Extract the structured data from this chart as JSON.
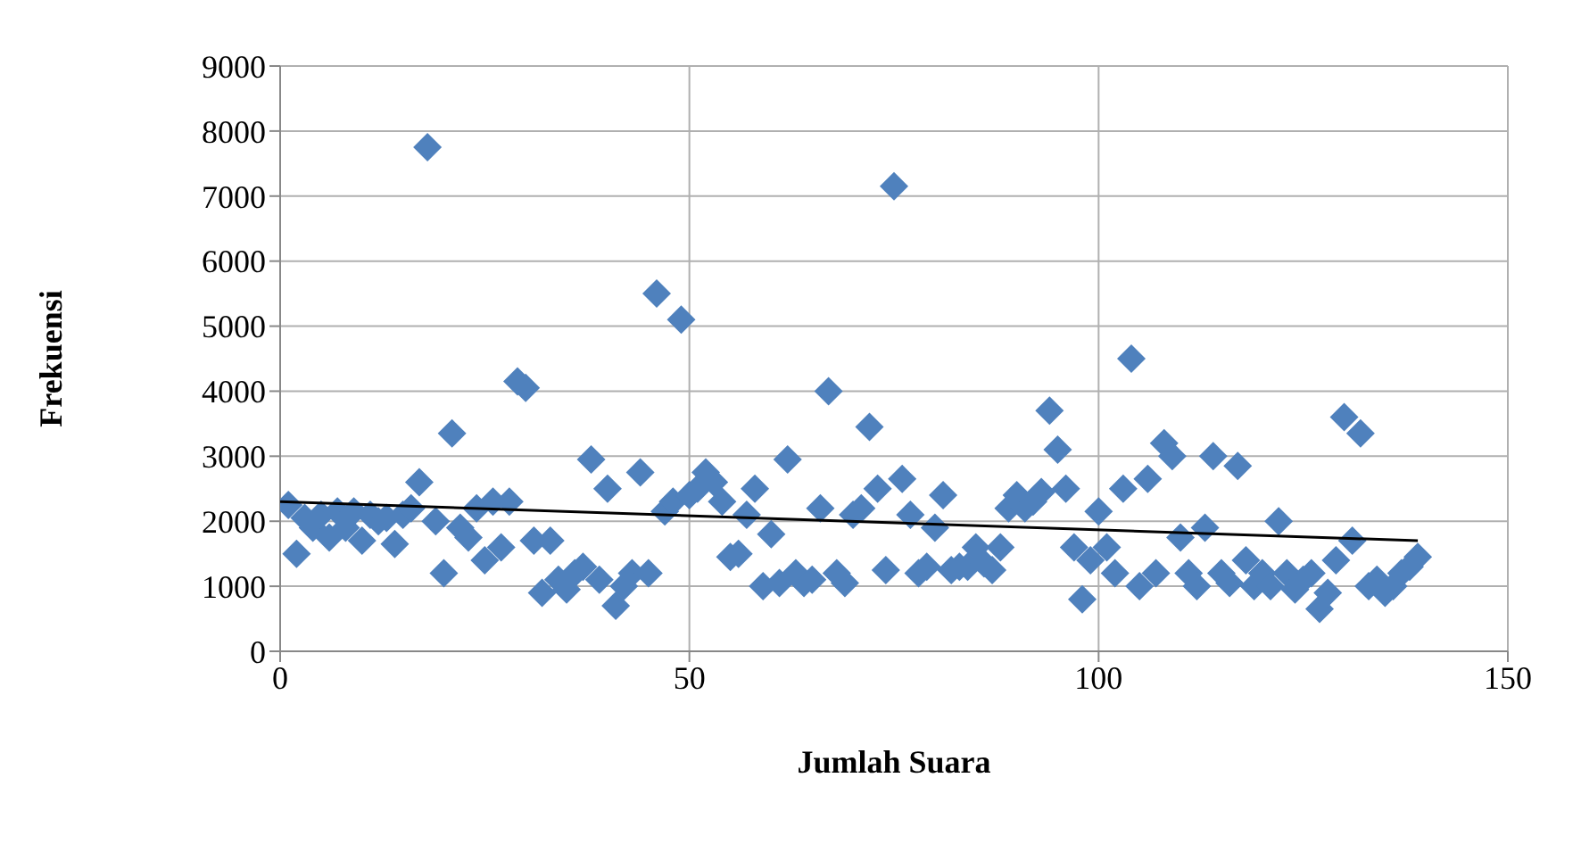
{
  "chart_data": {
    "type": "scatter",
    "xlabel": "Jumlah Suara",
    "ylabel": "Frekuensi",
    "xlim": [
      0,
      150
    ],
    "xticks": [
      0,
      50,
      100,
      150
    ],
    "ylim": [
      0,
      9000
    ],
    "yticks": [
      0,
      1000,
      2000,
      3000,
      4000,
      5000,
      6000,
      7000,
      8000,
      9000
    ],
    "grid": true,
    "series": [
      {
        "color": "#4f81bd",
        "marker": "diamond",
        "x": [
          1,
          2,
          3,
          4,
          5,
          6,
          7,
          8,
          9,
          10,
          11,
          12,
          13,
          14,
          15,
          16,
          17,
          18,
          19,
          20,
          21,
          22,
          23,
          24,
          25,
          26,
          27,
          28,
          29,
          30,
          31,
          32,
          33,
          34,
          35,
          36,
          37,
          38,
          39,
          40,
          41,
          42,
          43,
          44,
          45,
          46,
          47,
          48,
          49,
          50,
          51,
          52,
          53,
          54,
          55,
          56,
          57,
          58,
          59,
          60,
          61,
          62,
          63,
          64,
          65,
          66,
          67,
          68,
          69,
          70,
          71,
          72,
          73,
          74,
          75,
          76,
          77,
          78,
          79,
          80,
          81,
          82,
          83,
          84,
          85,
          86,
          87,
          88,
          89,
          90,
          91,
          92,
          93,
          94,
          95,
          96,
          97,
          98,
          99,
          100,
          101,
          102,
          103,
          104,
          105,
          106,
          107,
          108,
          109,
          110,
          111,
          112,
          113,
          114,
          115,
          116,
          117,
          118,
          119,
          120,
          121,
          122,
          123,
          124,
          125,
          126,
          127,
          128,
          129,
          130,
          131,
          132,
          133,
          134,
          135,
          136,
          137,
          138,
          139
        ],
        "values": [
          2250,
          1500,
          2050,
          1900,
          2100,
          1750,
          2150,
          1900,
          2150,
          1700,
          2100,
          2000,
          2050,
          1650,
          2100,
          2200,
          2600,
          7750,
          2000,
          1200,
          3350,
          1900,
          1750,
          2200,
          1400,
          2300,
          1600,
          2300,
          4150,
          4050,
          1700,
          900,
          1700,
          1100,
          950,
          1200,
          1300,
          2950,
          1100,
          2500,
          700,
          1000,
          1200,
          2750,
          1200,
          5500,
          2150,
          2300,
          5100,
          2400,
          2500,
          2750,
          2600,
          2300,
          1450,
          1500,
          2100,
          2500,
          1000,
          1800,
          1050,
          2950,
          1200,
          1050,
          1100,
          2200,
          4000,
          1200,
          1050,
          2100,
          2200,
          3450,
          2500,
          1250,
          7150,
          2650,
          2100,
          1200,
          1300,
          1900,
          2400,
          1250,
          1300,
          1300,
          1600,
          1350,
          1250,
          1600,
          2200,
          2400,
          2200,
          2300,
          2450,
          3700,
          3100,
          2500,
          1600,
          800,
          1400,
          2150,
          1600,
          1200,
          2500,
          4500,
          1000,
          2650,
          1200,
          3200,
          3000,
          1750,
          1200,
          1000,
          1900,
          3000,
          1200,
          1050,
          2850,
          1400,
          1000,
          1200,
          1000,
          2000,
          1200,
          950,
          1100,
          1200,
          650,
          900,
          1400,
          3600,
          1700,
          3350,
          1000,
          1100,
          900,
          1000,
          1200,
          1300,
          1450
        ]
      },
      {
        "type": "line",
        "color": "#000000",
        "marker": "none",
        "x": [
          0,
          139
        ],
        "values": [
          2300,
          1700
        ]
      }
    ]
  }
}
